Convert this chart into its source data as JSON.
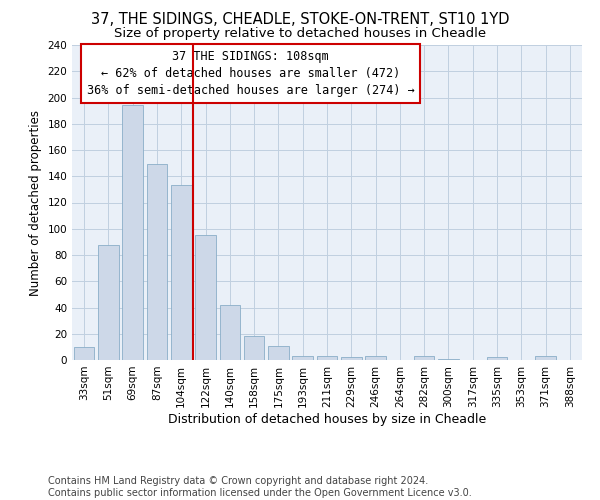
{
  "title": "37, THE SIDINGS, CHEADLE, STOKE-ON-TRENT, ST10 1YD",
  "subtitle": "Size of property relative to detached houses in Cheadle",
  "xlabel": "Distribution of detached houses by size in Cheadle",
  "ylabel": "Number of detached properties",
  "categories": [
    "33sqm",
    "51sqm",
    "69sqm",
    "87sqm",
    "104sqm",
    "122sqm",
    "140sqm",
    "158sqm",
    "175sqm",
    "193sqm",
    "211sqm",
    "229sqm",
    "246sqm",
    "264sqm",
    "282sqm",
    "300sqm",
    "317sqm",
    "335sqm",
    "353sqm",
    "371sqm",
    "388sqm"
  ],
  "values": [
    10,
    88,
    194,
    149,
    133,
    95,
    42,
    18,
    11,
    3,
    3,
    2,
    3,
    0,
    3,
    1,
    0,
    2,
    0,
    3,
    0
  ],
  "bar_color": "#cdd8e8",
  "bar_edge_color": "#8aaec8",
  "bar_width": 0.85,
  "vline_x": 4.5,
  "vline_color": "#cc0000",
  "annotation_line1": "37 THE SIDINGS: 108sqm",
  "annotation_line2": "← 62% of detached houses are smaller (472)",
  "annotation_line3": "36% of semi-detached houses are larger (274) →",
  "annotation_box_color": "#cc0000",
  "ylim": [
    0,
    240
  ],
  "yticks": [
    0,
    20,
    40,
    60,
    80,
    100,
    120,
    140,
    160,
    180,
    200,
    220,
    240
  ],
  "grid_color": "#c0cfe0",
  "background_color": "#eaf0f8",
  "footer_text": "Contains HM Land Registry data © Crown copyright and database right 2024.\nContains public sector information licensed under the Open Government Licence v3.0.",
  "title_fontsize": 10.5,
  "subtitle_fontsize": 9.5,
  "xlabel_fontsize": 9,
  "ylabel_fontsize": 8.5,
  "tick_fontsize": 7.5,
  "annotation_fontsize": 8.5,
  "footer_fontsize": 7
}
